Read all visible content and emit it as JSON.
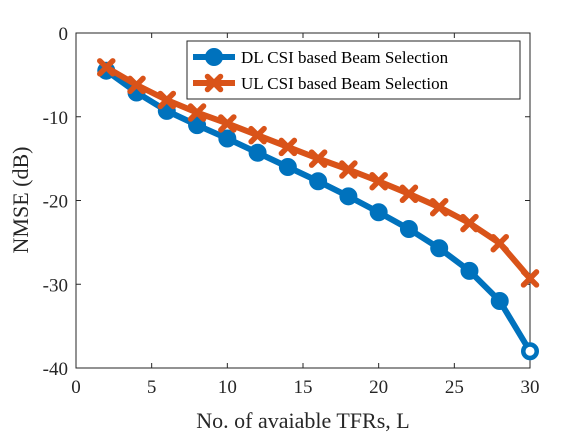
{
  "chart_data": {
    "type": "line",
    "title": "",
    "xlabel": "No. of avaiable TFRs, L",
    "ylabel": "NMSE (dB)",
    "xlim": [
      0,
      30
    ],
    "ylim": [
      -40,
      0
    ],
    "xticks": [
      0,
      5,
      10,
      15,
      20,
      25,
      30
    ],
    "yticks": [
      0,
      -10,
      -20,
      -30,
      -40
    ],
    "grid": false,
    "legend_position": "top-right",
    "x": [
      2,
      4,
      6,
      8,
      10,
      12,
      14,
      16,
      18,
      20,
      22,
      24,
      26,
      28,
      30
    ],
    "series": [
      {
        "name": "DL CSI based Beam Selection",
        "color": "#0072BD",
        "marker": "circle",
        "values": [
          -4.5,
          -7.1,
          -9.3,
          -11.0,
          -12.6,
          -14.3,
          -16.0,
          -17.7,
          -19.5,
          -21.4,
          -23.4,
          -25.7,
          -28.4,
          -32.0,
          -38.0
        ]
      },
      {
        "name": "UL CSI based Beam Selection",
        "color": "#D95319",
        "marker": "x",
        "values": [
          -4.1,
          -6.2,
          -8.0,
          -9.5,
          -10.8,
          -12.2,
          -13.6,
          -15.0,
          -16.3,
          -17.7,
          -19.2,
          -20.8,
          -22.7,
          -25.1,
          -29.3
        ]
      }
    ]
  }
}
